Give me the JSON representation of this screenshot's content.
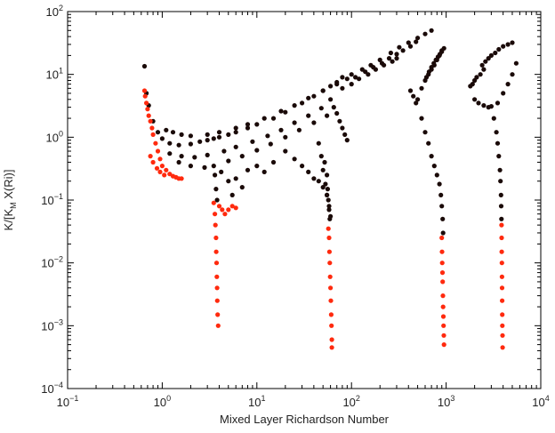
{
  "chart_data": {
    "type": "scatter",
    "title": "",
    "xlabel": "Mixed Layer Richardson Number",
    "ylabel": "K/[K_M X(Ri)]",
    "ylabel_parts": {
      "main": "K/[K",
      "sub": "M",
      "rest": " X(Ri)]"
    },
    "x_scale": "log",
    "y_scale": "log",
    "xlim": [
      0.1,
      10000
    ],
    "ylim": [
      0.0001,
      100
    ],
    "x_ticks": [
      {
        "value": 0.1,
        "base": "10",
        "exp": "−1"
      },
      {
        "value": 1,
        "base": "10",
        "exp": "0"
      },
      {
        "value": 10,
        "base": "10",
        "exp": "1"
      },
      {
        "value": 100,
        "base": "10",
        "exp": "2"
      },
      {
        "value": 1000,
        "base": "10",
        "exp": "3"
      },
      {
        "value": 10000,
        "base": "10",
        "exp": "4"
      }
    ],
    "y_ticks": [
      {
        "value": 0.0001,
        "base": "10",
        "exp": "−4"
      },
      {
        "value": 0.001,
        "base": "10",
        "exp": "−3"
      },
      {
        "value": 0.01,
        "base": "10",
        "exp": "−2"
      },
      {
        "value": 0.1,
        "base": "10",
        "exp": "−1"
      },
      {
        "value": 1,
        "base": "10",
        "exp": "0"
      },
      {
        "value": 10,
        "base": "10",
        "exp": "1"
      },
      {
        "value": 100,
        "base": "10",
        "exp": "2"
      }
    ],
    "grid": false,
    "colors": {
      "dark_points": "#1a0a08",
      "red_points": "#ff2a0e",
      "axis": "#000000"
    },
    "series": [
      {
        "color_key": "dark_points",
        "points": [
          [
            0.65,
            13.5
          ],
          [
            0.68,
            5.0
          ],
          [
            0.72,
            3.2
          ],
          [
            0.8,
            1.8
          ],
          [
            0.9,
            1.2
          ],
          [
            1.0,
            0.95
          ],
          [
            1.2,
            0.8
          ],
          [
            1.5,
            0.75
          ],
          [
            2.0,
            0.78
          ],
          [
            2.5,
            0.85
          ],
          [
            3.0,
            0.9
          ],
          [
            3.5,
            0.95
          ],
          [
            4.0,
            1.0
          ],
          [
            5.0,
            1.1
          ],
          [
            6.0,
            1.2
          ],
          [
            8.0,
            1.4
          ],
          [
            10,
            1.6
          ],
          [
            15,
            2.0
          ],
          [
            20,
            2.5
          ],
          [
            30,
            3.5
          ],
          [
            40,
            4.5
          ],
          [
            50,
            5.5
          ],
          [
            60,
            6.5
          ],
          [
            70,
            7.5
          ],
          [
            80,
            9.0
          ],
          [
            100,
            10
          ],
          [
            130,
            12
          ],
          [
            160,
            14
          ],
          [
            200,
            17
          ],
          [
            260,
            22
          ],
          [
            320,
            27
          ],
          [
            400,
            32
          ],
          [
            500,
            38
          ],
          [
            600,
            44
          ],
          [
            700,
            50
          ],
          [
            1.1,
            1.3
          ],
          [
            1.3,
            1.2
          ],
          [
            1.6,
            1.1
          ],
          [
            2.0,
            1.05
          ],
          [
            3.0,
            1.1
          ],
          [
            4.0,
            1.2
          ],
          [
            6.0,
            1.4
          ],
          [
            8.0,
            1.6
          ],
          [
            12,
            2.0
          ],
          [
            18,
            2.6
          ],
          [
            25,
            3.2
          ],
          [
            35,
            4.2
          ],
          [
            50,
            5.5
          ],
          [
            70,
            7.0
          ],
          [
            90,
            8.5
          ],
          [
            1.2,
            0.55
          ],
          [
            1.6,
            0.5
          ],
          [
            2.2,
            0.48
          ],
          [
            3.0,
            0.52
          ],
          [
            4.5,
            0.6
          ],
          [
            6.0,
            0.7
          ],
          [
            9.0,
            0.85
          ],
          [
            13,
            1.05
          ],
          [
            18,
            1.3
          ],
          [
            25,
            1.7
          ],
          [
            35,
            2.2
          ],
          [
            48,
            2.9
          ],
          [
            1.5,
            0.4
          ],
          [
            2.0,
            0.35
          ],
          [
            2.8,
            0.33
          ],
          [
            3.5,
            0.35
          ],
          [
            5.0,
            0.42
          ],
          [
            7.0,
            0.5
          ],
          [
            10,
            0.62
          ],
          [
            14,
            0.78
          ],
          [
            20,
            1.0
          ],
          [
            28,
            1.3
          ],
          [
            40,
            1.7
          ],
          [
            55,
            2.2
          ],
          [
            3.6,
            0.25
          ],
          [
            3.7,
            0.15
          ],
          [
            3.8,
            0.1
          ],
          [
            4.2,
            0.28
          ],
          [
            5.0,
            0.2
          ],
          [
            5.5,
            0.12
          ],
          [
            6.0,
            0.22
          ],
          [
            7.0,
            0.16
          ],
          [
            8.0,
            0.3
          ],
          [
            10,
            0.35
          ],
          [
            12,
            0.28
          ],
          [
            15,
            0.4
          ],
          [
            20,
            0.6
          ],
          [
            25,
            0.45
          ],
          [
            30,
            0.35
          ],
          [
            35,
            0.28
          ],
          [
            40,
            0.22
          ],
          [
            45,
            0.2
          ],
          [
            50,
            0.16
          ],
          [
            55,
            0.12
          ],
          [
            58,
            0.08
          ],
          [
            60,
            0.055
          ],
          [
            52,
            0.4
          ],
          [
            55,
            0.25
          ],
          [
            56,
            0.15
          ],
          [
            57,
            0.1
          ],
          [
            58,
            0.07
          ],
          [
            59,
            0.05
          ],
          [
            45,
            0.8
          ],
          [
            48,
            0.5
          ],
          [
            50,
            0.3
          ],
          [
            53,
            0.18
          ],
          [
            55,
            0.12
          ],
          [
            60,
            4.0
          ],
          [
            65,
            3.0
          ],
          [
            70,
            2.4
          ],
          [
            75,
            1.8
          ],
          [
            80,
            1.4
          ],
          [
            85,
            1.1
          ],
          [
            90,
            0.9
          ],
          [
            80,
            6
          ],
          [
            100,
            7
          ],
          [
            120,
            8.5
          ],
          [
            150,
            10
          ],
          [
            180,
            12
          ],
          [
            220,
            14
          ],
          [
            270,
            16
          ],
          [
            300,
            18
          ],
          [
            110,
            9
          ],
          [
            140,
            11
          ],
          [
            170,
            13
          ],
          [
            210,
            15
          ],
          [
            250,
            18
          ],
          [
            300,
            21
          ],
          [
            350,
            24
          ],
          [
            420,
            28
          ],
          [
            480,
            33
          ],
          [
            420,
            5.5
          ],
          [
            450,
            4.5
          ],
          [
            480,
            3.5
          ],
          [
            500,
            4.0
          ],
          [
            550,
            6
          ],
          [
            600,
            8
          ],
          [
            650,
            10
          ],
          [
            700,
            12
          ],
          [
            750,
            14
          ],
          [
            800,
            17
          ],
          [
            850,
            20
          ],
          [
            900,
            24
          ],
          [
            950,
            26
          ],
          [
            550,
            2.0
          ],
          [
            600,
            1.2
          ],
          [
            650,
            0.8
          ],
          [
            700,
            0.5
          ],
          [
            750,
            0.35
          ],
          [
            800,
            0.25
          ],
          [
            850,
            0.18
          ],
          [
            880,
            0.12
          ],
          [
            900,
            0.08
          ],
          [
            920,
            0.05
          ],
          [
            930,
            0.03
          ],
          [
            620,
            9
          ],
          [
            660,
            11
          ],
          [
            700,
            13
          ],
          [
            740,
            15
          ],
          [
            780,
            17
          ],
          [
            820,
            19
          ],
          [
            860,
            21
          ],
          [
            900,
            23
          ],
          [
            2000,
            4.0
          ],
          [
            2200,
            3.5
          ],
          [
            2500,
            3.2
          ],
          [
            2800,
            3.0
          ],
          [
            3000,
            3.1
          ],
          [
            3500,
            3.5
          ],
          [
            4000,
            5.0
          ],
          [
            4500,
            7.0
          ],
          [
            5000,
            10
          ],
          [
            5500,
            15
          ],
          [
            2400,
            14
          ],
          [
            2600,
            16
          ],
          [
            2800,
            18
          ],
          [
            3000,
            20
          ],
          [
            3300,
            22
          ],
          [
            3600,
            25
          ],
          [
            4000,
            28
          ],
          [
            4500,
            30
          ],
          [
            5000,
            32
          ],
          [
            3200,
            2.0
          ],
          [
            3400,
            1.2
          ],
          [
            3500,
            0.8
          ],
          [
            3600,
            0.5
          ],
          [
            3700,
            0.3
          ],
          [
            3750,
            0.2
          ],
          [
            3800,
            0.12
          ],
          [
            3820,
            0.08
          ],
          [
            3840,
            0.05
          ],
          [
            2500,
            12
          ],
          [
            2300,
            10
          ],
          [
            2100,
            9
          ],
          [
            2000,
            8
          ],
          [
            1900,
            7
          ],
          [
            1800,
            6.5
          ]
        ]
      },
      {
        "color_key": "red_points",
        "points": [
          [
            0.65,
            5.5
          ],
          [
            0.66,
            4.5
          ],
          [
            0.68,
            3.5
          ],
          [
            0.7,
            2.8
          ],
          [
            0.72,
            2.2
          ],
          [
            0.75,
            1.8
          ],
          [
            0.78,
            1.4
          ],
          [
            0.8,
            1.1
          ],
          [
            0.85,
            0.8
          ],
          [
            0.9,
            0.6
          ],
          [
            0.95,
            0.45
          ],
          [
            1.0,
            0.35
          ],
          [
            1.1,
            0.3
          ],
          [
            1.2,
            0.26
          ],
          [
            1.3,
            0.24
          ],
          [
            1.4,
            0.23
          ],
          [
            1.5,
            0.22
          ],
          [
            1.6,
            0.22
          ],
          [
            0.75,
            0.5
          ],
          [
            0.8,
            0.4
          ],
          [
            0.88,
            0.32
          ],
          [
            0.95,
            0.28
          ],
          [
            1.05,
            0.25
          ],
          [
            3.5,
            0.09
          ],
          [
            3.6,
            0.06
          ],
          [
            3.65,
            0.04
          ],
          [
            3.7,
            0.025
          ],
          [
            3.72,
            0.015
          ],
          [
            3.75,
            0.01
          ],
          [
            3.78,
            0.006
          ],
          [
            3.8,
            0.004
          ],
          [
            3.82,
            0.0025
          ],
          [
            3.85,
            0.0015
          ],
          [
            3.9,
            0.001
          ],
          [
            4.0,
            0.08
          ],
          [
            4.3,
            0.07
          ],
          [
            4.6,
            0.06
          ],
          [
            5.0,
            0.07
          ],
          [
            5.5,
            0.08
          ],
          [
            6.0,
            0.075
          ],
          [
            57,
            0.035
          ],
          [
            58,
            0.025
          ],
          [
            58.5,
            0.015
          ],
          [
            59,
            0.01
          ],
          [
            59.5,
            0.006
          ],
          [
            60,
            0.004
          ],
          [
            60.5,
            0.0025
          ],
          [
            61,
            0.0015
          ],
          [
            61.5,
            0.001
          ],
          [
            62,
            0.0006
          ],
          [
            62,
            0.00045
          ],
          [
            900,
            0.025
          ],
          [
            905,
            0.015
          ],
          [
            910,
            0.01
          ],
          [
            915,
            0.007
          ],
          [
            920,
            0.005
          ],
          [
            925,
            0.003
          ],
          [
            930,
            0.002
          ],
          [
            935,
            0.0014
          ],
          [
            940,
            0.001
          ],
          [
            945,
            0.0007
          ],
          [
            950,
            0.0005
          ],
          [
            3850,
            0.04
          ],
          [
            3860,
            0.025
          ],
          [
            3870,
            0.015
          ],
          [
            3880,
            0.01
          ],
          [
            3890,
            0.006
          ],
          [
            3900,
            0.004
          ],
          [
            3910,
            0.0025
          ],
          [
            3920,
            0.0015
          ],
          [
            3930,
            0.001
          ],
          [
            3940,
            0.0007
          ],
          [
            3950,
            0.00045
          ]
        ]
      }
    ]
  }
}
